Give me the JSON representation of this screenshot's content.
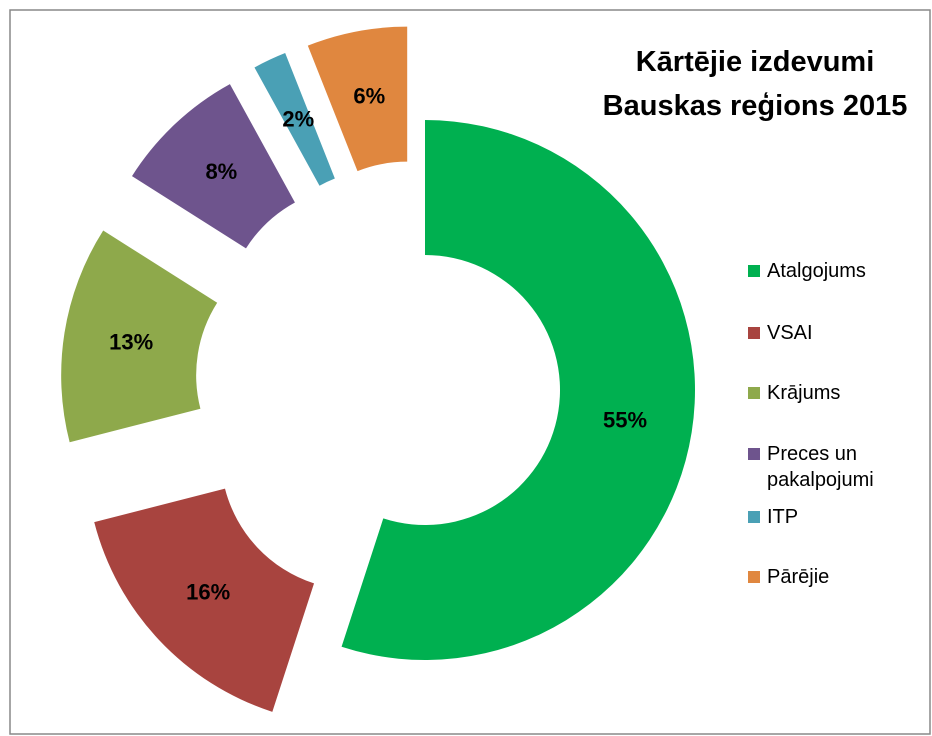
{
  "chart_data": {
    "type": "doughnut",
    "title": "Kārtējie izdevumi Bauskas reģions 2015",
    "categories": [
      "Atalgojums",
      "VSAI",
      "Krājums",
      "Preces un pakalpojumi",
      "ITP",
      "Pārējie"
    ],
    "values": [
      55,
      16,
      13,
      8,
      2,
      6
    ],
    "value_labels": [
      "55%",
      "16%",
      "13%",
      "8%",
      "2%",
      "6%"
    ],
    "colors": [
      "#00b050",
      "#a8443f",
      "#8ea94b",
      "#6e548d",
      "#4aa0b5",
      "#e0873f"
    ],
    "legend": "right"
  }
}
